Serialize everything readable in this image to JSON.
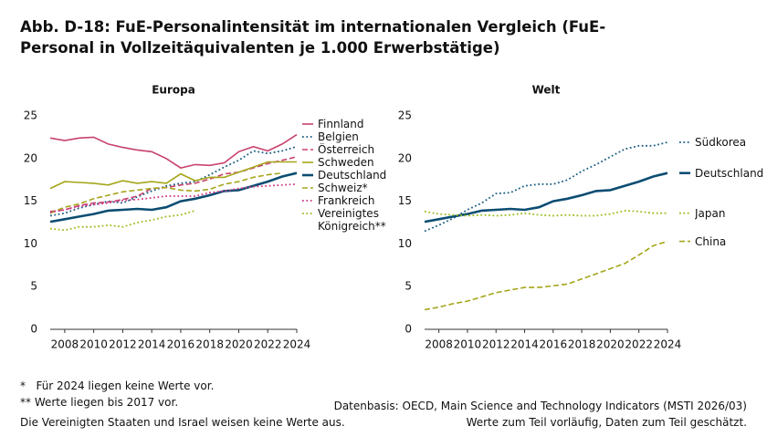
{
  "title": "Abb. D-18: FuE-Personalintensität im internationalen Vergleich (FuE-Personal in Vollzeitäquivalenten je 1.000 Erwerbstätige)",
  "footnotes": [
    "*   Für 2024 liegen keine Werte vor.",
    "** Werte liegen bis 2017 vor.",
    "Die Vereinigten Staaten und Israel weisen keine Werte aus."
  ],
  "source": [
    "Datenbasis: OECD, Main Science and Technology Indicators (MSTI 2026/03)",
    "Werte zum Teil vorläufig, Daten zum Teil geschätzt."
  ],
  "chart_data": [
    {
      "type": "line",
      "title": "Europa",
      "legend": "right-list",
      "x": [
        2007,
        2008,
        2009,
        2010,
        2011,
        2012,
        2013,
        2014,
        2015,
        2016,
        2017,
        2018,
        2019,
        2020,
        2021,
        2022,
        2023,
        2024
      ],
      "xlim": [
        2007,
        2024
      ],
      "xticks": [
        2008,
        2010,
        2012,
        2014,
        2016,
        2018,
        2020,
        2022,
        2024
      ],
      "ylim": [
        0,
        25
      ],
      "yticks": [
        0,
        5,
        10,
        15,
        20,
        25
      ],
      "grid": false,
      "series": [
        {
          "name": "Finnland",
          "color": "#c8426e",
          "dash": "solid",
          "line_width": 1.6,
          "values": [
            22.4,
            22.1,
            22.4,
            22.5,
            21.7,
            21.3,
            21.0,
            20.8,
            20.0,
            18.9,
            19.3,
            19.2,
            19.5,
            20.8,
            21.4,
            20.9,
            21.7,
            22.8
          ]
        },
        {
          "name": "Belgien",
          "color": "#1c5f85",
          "dash": "dotted",
          "line_width": 1.8,
          "values": [
            13.3,
            13.6,
            14.2,
            14.6,
            15.0,
            14.8,
            15.5,
            16.2,
            16.8,
            17.1,
            17.3,
            18.1,
            19.0,
            19.8,
            20.9,
            20.6,
            20.9,
            21.4
          ]
        },
        {
          "name": "Österreich",
          "color": "#c8426e",
          "dash": "dashed",
          "line_width": 1.6,
          "values": [
            13.8,
            14.0,
            14.5,
            14.8,
            14.9,
            15.2,
            15.6,
            16.5,
            16.6,
            16.9,
            17.1,
            17.6,
            18.2,
            18.4,
            18.9,
            19.4,
            19.8,
            20.2
          ]
        },
        {
          "name": "Schweden",
          "color": "#a5a519",
          "dash": "solid",
          "line_width": 1.6,
          "values": [
            16.5,
            17.3,
            17.2,
            17.1,
            16.9,
            17.4,
            17.1,
            17.3,
            17.1,
            18.2,
            17.4,
            17.8,
            17.8,
            18.4,
            19.0,
            19.6,
            19.6,
            19.6
          ]
        },
        {
          "name": "Deutschland",
          "color": "#0b4d72",
          "dash": "solid",
          "line_width": 2.6,
          "values": [
            12.6,
            12.9,
            13.2,
            13.5,
            13.9,
            14.0,
            14.1,
            14.0,
            14.3,
            15.0,
            15.3,
            15.7,
            16.2,
            16.3,
            16.8,
            17.3,
            17.9,
            18.3
          ]
        },
        {
          "name": "Schweiz*",
          "color": "#a5a519",
          "dash": "dashed",
          "line_width": 1.6,
          "values": [
            13.6,
            14.3,
            14.7,
            15.3,
            15.7,
            16.1,
            16.3,
            16.5,
            16.6,
            16.3,
            16.2,
            16.4,
            17.0,
            17.3,
            17.8,
            18.1,
            18.3,
            null
          ]
        },
        {
          "name": "Frankreich",
          "color": "#d03c8a",
          "dash": "dotted",
          "line_width": 1.8,
          "values": [
            13.7,
            14.0,
            14.4,
            14.6,
            14.8,
            15.1,
            15.2,
            15.4,
            15.6,
            15.6,
            15.6,
            16.0,
            16.2,
            16.5,
            16.7,
            16.8,
            16.9,
            17.0
          ]
        },
        {
          "name": "Vereinigtes Königreich**",
          "color": "#9bbd1e",
          "dash": "dotted",
          "line_width": 1.8,
          "values": [
            11.8,
            11.6,
            12.0,
            12.0,
            12.2,
            12.0,
            12.5,
            12.8,
            13.2,
            13.4,
            13.9,
            null,
            null,
            null,
            null,
            null,
            null,
            null
          ]
        }
      ]
    },
    {
      "type": "line",
      "title": "Welt",
      "legend": "line-end",
      "x": [
        2007,
        2008,
        2009,
        2010,
        2011,
        2012,
        2013,
        2014,
        2015,
        2016,
        2017,
        2018,
        2019,
        2020,
        2021,
        2022,
        2023,
        2024
      ],
      "xlim": [
        2007,
        2024
      ],
      "xticks": [
        2008,
        2010,
        2012,
        2014,
        2016,
        2018,
        2020,
        2022,
        2024
      ],
      "ylim": [
        0,
        25
      ],
      "yticks": [
        0,
        5,
        10,
        15,
        20,
        25
      ],
      "grid": false,
      "series": [
        {
          "name": "Südkorea",
          "color": "#1c5f85",
          "dash": "dotted",
          "line_width": 1.8,
          "values": [
            11.5,
            12.2,
            13.0,
            14.0,
            14.8,
            15.9,
            16.0,
            16.8,
            17.0,
            17.0,
            17.5,
            18.5,
            19.3,
            20.2,
            21.1,
            21.5,
            21.5,
            21.9
          ]
        },
        {
          "name": "Deutschland",
          "color": "#0b4d72",
          "dash": "solid",
          "line_width": 2.6,
          "values": [
            12.6,
            12.9,
            13.2,
            13.5,
            13.9,
            14.0,
            14.1,
            14.0,
            14.3,
            15.0,
            15.3,
            15.7,
            16.2,
            16.3,
            16.8,
            17.3,
            17.9,
            18.3
          ]
        },
        {
          "name": "Japan",
          "color": "#9bbd1e",
          "dash": "dotted",
          "line_width": 1.8,
          "values": [
            13.8,
            13.5,
            13.4,
            13.3,
            13.4,
            13.3,
            13.4,
            13.6,
            13.4,
            13.3,
            13.4,
            13.3,
            13.3,
            13.5,
            13.9,
            13.8,
            13.6,
            13.6
          ]
        },
        {
          "name": "China",
          "color": "#a5a519",
          "dash": "dashed",
          "line_width": 1.6,
          "values": [
            2.3,
            2.6,
            3.0,
            3.3,
            3.8,
            4.3,
            4.6,
            4.9,
            4.9,
            5.1,
            5.3,
            5.9,
            6.5,
            7.1,
            7.7,
            8.7,
            9.8,
            10.3
          ]
        }
      ]
    }
  ]
}
